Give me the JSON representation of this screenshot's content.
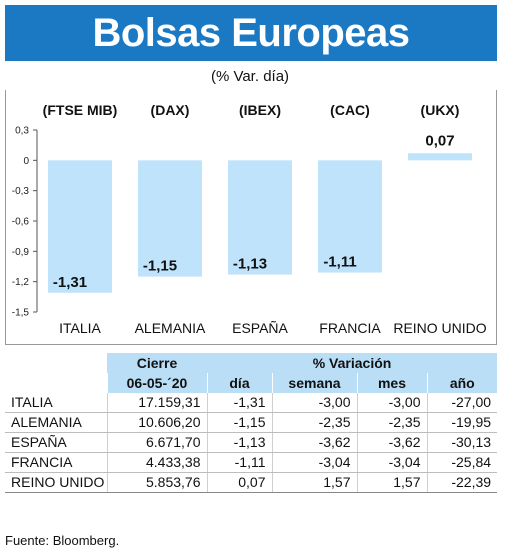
{
  "title": "Bolsas Europeas",
  "subtitle": "(% Var. día)",
  "chart_data": {
    "type": "bar",
    "indices": [
      "(FTSE MIB)",
      "(DAX)",
      "(IBEX)",
      "(CAC)",
      "(UKX)"
    ],
    "categories": [
      "ITALIA",
      "ALEMANIA",
      "ESPAÑA",
      "FRANCIA",
      "REINO UNIDO"
    ],
    "values": [
      -1.31,
      -1.15,
      -1.13,
      -1.11,
      0.07
    ],
    "value_labels": [
      "-1,31",
      "-1,15",
      "-1,13",
      "-1,11",
      "0,07"
    ],
    "yticks": [
      0.3,
      0,
      -0.3,
      -0.6,
      -0.9,
      -1.2,
      -1.5
    ],
    "ytick_labels": [
      "0,3",
      "0",
      "-0,3",
      "-0,6",
      "-0,9",
      "-1,2",
      "-1,5"
    ],
    "ylim": [
      -1.5,
      0.3
    ],
    "bar_color": "#bfe3fa",
    "grid": false
  },
  "table": {
    "header_cierre": "Cierre",
    "header_variacion": "% Variación",
    "date": "06-05-´20",
    "col_dia": "día",
    "col_semana": "semana",
    "col_mes": "mes",
    "col_anio": "año",
    "rows": [
      {
        "pais": "ITALIA",
        "cierre": "17.159,31",
        "dia": "-1,31",
        "semana": "-3,00",
        "mes": "-3,00",
        "anio": "-27,00"
      },
      {
        "pais": "ALEMANIA",
        "cierre": "10.606,20",
        "dia": "-1,15",
        "semana": "-2,35",
        "mes": "-2,35",
        "anio": "-19,95"
      },
      {
        "pais": "ESPAÑA",
        "cierre": "6.671,70",
        "dia": "-1,13",
        "semana": "-3,62",
        "mes": "-3,62",
        "anio": "-30,13"
      },
      {
        "pais": "FRANCIA",
        "cierre": "4.433,38",
        "dia": "-1,11",
        "semana": "-3,04",
        "mes": "-3,04",
        "anio": "-25,84"
      },
      {
        "pais": "REINO UNIDO",
        "cierre": "5.853,76",
        "dia": "0,07",
        "semana": "1,57",
        "mes": "1,57",
        "anio": "-22,39"
      }
    ]
  },
  "source": "Fuente: Bloomberg.",
  "colors": {
    "title_bar": "#1b79c4",
    "header_fill": "#b9def5"
  }
}
